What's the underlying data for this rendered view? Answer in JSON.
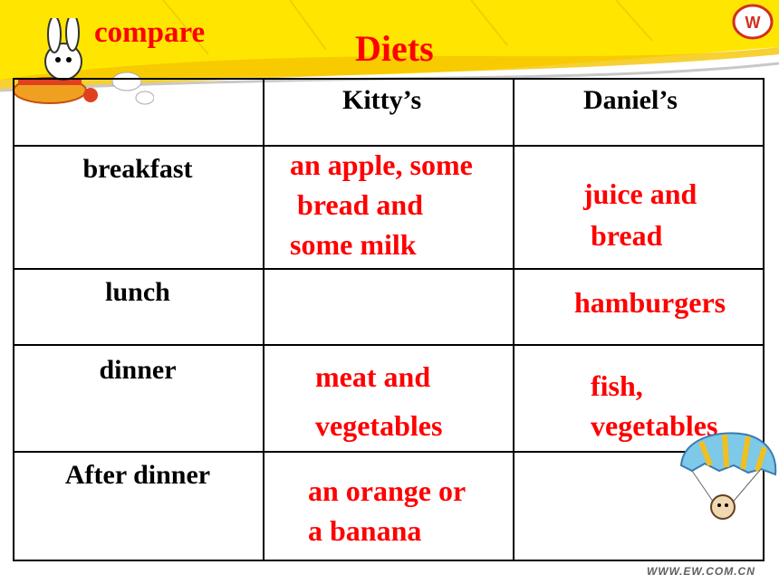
{
  "slide": {
    "badge": "compare",
    "title": "Diets"
  },
  "table": {
    "headers": [
      "",
      "Kitty’s",
      "Daniel’s"
    ],
    "rows": [
      {
        "label": "breakfast",
        "kitty": [
          "an apple, some",
          " bread and",
          "some milk"
        ],
        "daniel": [
          "juice and",
          " bread"
        ]
      },
      {
        "label": "lunch",
        "kitty": [],
        "daniel": [
          "hamburgers"
        ]
      },
      {
        "label": "dinner",
        "kitty": [
          "meat and",
          "vegetables"
        ],
        "daniel": [
          "fish,",
          "vegetables"
        ]
      },
      {
        "label": "After dinner",
        "kitty": [
          "an orange or",
          "a banana"
        ],
        "daniel": []
      }
    ]
  },
  "footer": "WWW.EW.COM.CN",
  "colors": {
    "accent": "#ff0000",
    "banner": "#ffe600",
    "text": "#000000"
  },
  "icons": [
    "rabbit-airplane-icon",
    "ew-logo-icon",
    "parachute-mascot-icon"
  ]
}
